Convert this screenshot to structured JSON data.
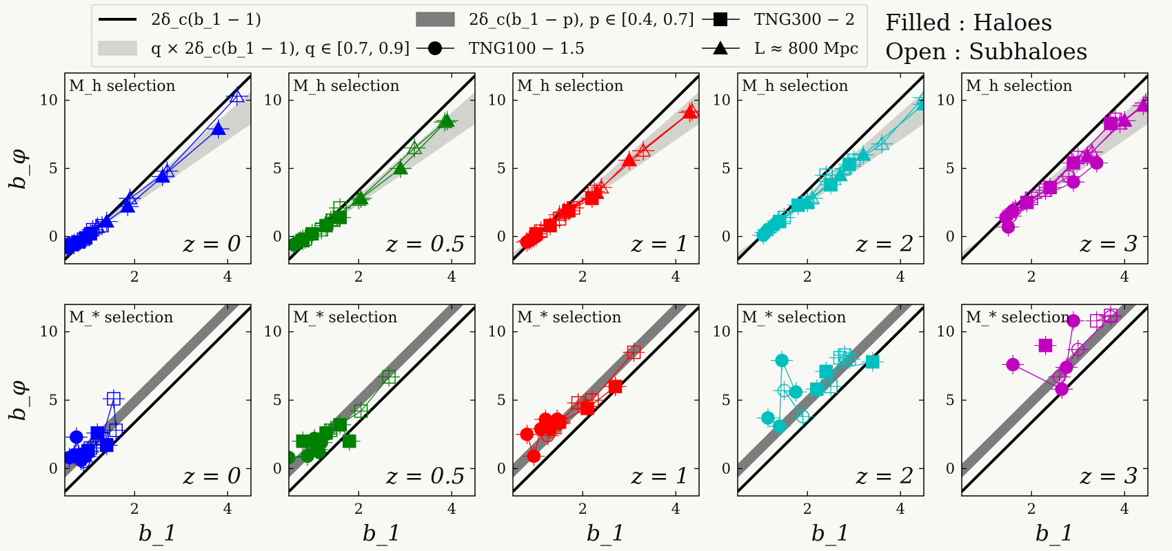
{
  "legend": {
    "items": [
      {
        "symbol": "line",
        "label": "2δ_c(b_1 − 1)"
      },
      {
        "symbol": "light-band",
        "label": "q × 2δ_c(b_1 − 1),  q ∈ [0.7, 0.9]"
      },
      {
        "symbol": "dark-band",
        "label": "2δ_c(b_1 − p),  p ∈ [0.4, 0.7]"
      },
      {
        "symbol": "circle",
        "label": "TNG100 − 1.5"
      },
      {
        "symbol": "square",
        "label": "TNG300 − 2"
      },
      {
        "symbol": "triangle",
        "label": "L ≈ 800 Mpc"
      }
    ],
    "side_note": {
      "line1": "Filled :  Haloes",
      "line2": "Open  :  Subhaloes"
    }
  },
  "chart_data": {
    "type": "scatter",
    "xlabel": "b_1",
    "ylabel": "b_φ",
    "xlim": [
      0.5,
      4.5
    ],
    "ylim": [
      -2,
      12
    ],
    "xticks": [
      2,
      4
    ],
    "yticks": [
      0,
      5,
      10
    ],
    "delta_c": 1.686,
    "bands": {
      "light_q": [
        0.7,
        0.9
      ],
      "dark_p": [
        0.4,
        0.7
      ]
    },
    "panels": [
      {
        "row": "Mh",
        "selection": "M_h selection",
        "z": "z = 0",
        "color": "#0000ff",
        "triangles_filled": [
          [
            1.4,
            1.1
          ],
          [
            1.85,
            2.2
          ],
          [
            2.6,
            4.4
          ],
          [
            3.8,
            7.9
          ]
        ],
        "triangles_open": [
          [
            1.2,
            0.7
          ],
          [
            1.9,
            2.8
          ],
          [
            2.7,
            4.8
          ],
          [
            4.2,
            10.3
          ]
        ],
        "squares_filled": [
          [
            0.65,
            -0.6
          ],
          [
            0.8,
            -0.4
          ],
          [
            0.95,
            -0.1
          ],
          [
            1.05,
            0.2
          ]
        ],
        "squares_open": [
          [
            0.7,
            -0.5
          ],
          [
            0.9,
            -0.2
          ],
          [
            1.1,
            0.5
          ],
          [
            1.3,
            0.8
          ]
        ],
        "circles_filled": [
          [
            0.55,
            -0.8
          ],
          [
            0.6,
            -0.7
          ],
          [
            0.7,
            -0.6
          ]
        ],
        "circles_open": [
          [
            0.58,
            -0.75
          ],
          [
            0.65,
            -0.65
          ]
        ]
      },
      {
        "row": "Mh",
        "selection": "M_h selection",
        "z": "z = 0.5",
        "color": "#008000",
        "triangles_filled": [
          [
            1.3,
            1.0
          ],
          [
            2.05,
            2.8
          ],
          [
            2.9,
            5.0
          ],
          [
            3.9,
            8.5
          ]
        ],
        "triangles_open": [
          [
            1.4,
            1.2
          ],
          [
            2.0,
            2.7
          ],
          [
            3.2,
            6.5
          ],
          [
            3.85,
            8.4
          ]
        ],
        "squares_filled": [
          [
            0.8,
            -0.3
          ],
          [
            1.0,
            0.2
          ],
          [
            1.3,
            0.8
          ],
          [
            1.6,
            1.4
          ]
        ],
        "squares_open": [
          [
            0.85,
            -0.2
          ],
          [
            1.2,
            0.5
          ],
          [
            1.45,
            1.2
          ],
          [
            1.6,
            2.1
          ]
        ],
        "circles_filled": [
          [
            0.6,
            -0.6
          ],
          [
            0.7,
            -0.4
          ],
          [
            0.8,
            -0.2
          ]
        ],
        "circles_open": [
          [
            0.65,
            -0.5
          ],
          [
            0.75,
            -0.3
          ]
        ]
      },
      {
        "row": "Mh",
        "selection": "M_h selection",
        "z": "z = 1",
        "color": "#ff0000",
        "triangles_filled": [
          [
            1.6,
            1.8
          ],
          [
            2.3,
            3.2
          ],
          [
            3.0,
            5.6
          ],
          [
            4.3,
            9.1
          ]
        ],
        "triangles_open": [
          [
            1.5,
            1.6
          ],
          [
            2.4,
            3.6
          ],
          [
            3.3,
            6.3
          ],
          [
            4.35,
            9.2
          ]
        ],
        "squares_filled": [
          [
            1.0,
            0.2
          ],
          [
            1.3,
            0.8
          ],
          [
            1.7,
            1.9
          ],
          [
            2.2,
            2.8
          ]
        ],
        "squares_open": [
          [
            1.1,
            0.4
          ],
          [
            1.5,
            1.3
          ],
          [
            1.8,
            2.1
          ],
          [
            2.25,
            3.3
          ]
        ],
        "circles_filled": [
          [
            0.8,
            -0.4
          ],
          [
            0.9,
            -0.2
          ],
          [
            1.0,
            0.0
          ]
        ],
        "circles_open": [
          [
            0.85,
            -0.3
          ],
          [
            0.95,
            -0.1
          ]
        ]
      },
      {
        "row": "Mh",
        "selection": "M_h selection",
        "z": "z = 2",
        "color": "#00bfbf",
        "triangles_filled": [
          [
            2.0,
            2.5
          ],
          [
            2.7,
            4.5
          ],
          [
            3.2,
            6.0
          ],
          [
            4.5,
            9.7
          ]
        ],
        "triangles_open": [
          [
            2.1,
            2.8
          ],
          [
            2.8,
            5.0
          ],
          [
            3.6,
            6.8
          ],
          [
            4.5,
            10.2
          ]
        ],
        "squares_filled": [
          [
            1.4,
            1.1
          ],
          [
            1.8,
            2.3
          ],
          [
            2.5,
            3.8
          ],
          [
            2.9,
            5.3
          ]
        ],
        "squares_open": [
          [
            1.5,
            1.4
          ],
          [
            2.0,
            2.5
          ],
          [
            2.4,
            4.5
          ],
          [
            3.0,
            5.6
          ]
        ],
        "circles_filled": [
          [
            1.05,
            0.1
          ],
          [
            1.15,
            0.5
          ],
          [
            1.3,
            0.9
          ]
        ],
        "circles_open": [
          [
            1.1,
            0.3
          ],
          [
            1.25,
            0.7
          ]
        ]
      },
      {
        "row": "Mh",
        "selection": "M_h selection",
        "z": "z = 3",
        "color": "#bf00bf",
        "triangles_filled": [
          [
            3.2,
            5.9
          ],
          [
            4.0,
            8.5
          ],
          [
            4.4,
            9.6
          ]
        ],
        "triangles_open": [
          [
            3.3,
            6.2
          ],
          [
            3.9,
            8.3
          ],
          [
            4.45,
            9.8
          ]
        ],
        "squares_filled": [
          [
            1.9,
            2.5
          ],
          [
            2.4,
            3.6
          ],
          [
            2.9,
            5.4
          ],
          [
            3.7,
            8.3
          ]
        ],
        "squares_open": [
          [
            2.0,
            2.8
          ],
          [
            2.3,
            3.4
          ],
          [
            3.0,
            5.8
          ],
          [
            3.8,
            8.6
          ]
        ],
        "circles_filled": [
          [
            1.45,
            1.4
          ],
          [
            1.5,
            0.7
          ],
          [
            1.6,
            1.9
          ],
          [
            2.9,
            4.0
          ],
          [
            3.4,
            5.4
          ]
        ],
        "circles_open": [
          [
            1.55,
            1.5
          ],
          [
            1.65,
            2.0
          ],
          [
            2.8,
            4.4
          ]
        ]
      },
      {
        "row": "Ms",
        "selection": "M_* selection",
        "z": "z = 0",
        "color": "#0000ff",
        "squares_filled": [
          [
            1.2,
            2.6
          ],
          [
            1.4,
            1.7
          ],
          [
            0.9,
            1.0
          ],
          [
            1.0,
            1.3
          ]
        ],
        "squares_open": [
          [
            1.55,
            5.1
          ],
          [
            1.6,
            2.8
          ],
          [
            1.05,
            1.5
          ],
          [
            1.3,
            2.2
          ]
        ],
        "circles_filled": [
          [
            0.6,
            0.8
          ],
          [
            0.75,
            2.3
          ],
          [
            0.85,
            0.6
          ],
          [
            0.95,
            0.9
          ],
          [
            0.7,
            1.0
          ]
        ],
        "circles_open": [
          [
            0.8,
            1.0
          ],
          [
            0.9,
            0.5
          ],
          [
            1.0,
            1.2
          ]
        ]
      },
      {
        "row": "Ms",
        "selection": "M_* selection",
        "z": "z = 0.5",
        "color": "#008000",
        "squares_filled": [
          [
            0.8,
            2.0
          ],
          [
            1.3,
            2.6
          ],
          [
            1.6,
            3.2
          ],
          [
            1.8,
            2.0
          ],
          [
            1.1,
            1.4
          ]
        ],
        "squares_open": [
          [
            1.4,
            2.8
          ],
          [
            2.05,
            4.2
          ],
          [
            2.65,
            6.7
          ]
        ],
        "circles_filled": [
          [
            0.5,
            0.8
          ],
          [
            0.9,
            0.9
          ],
          [
            1.05,
            2.2
          ],
          [
            1.2,
            1.9
          ],
          [
            1.15,
            1.2
          ]
        ],
        "circles_open": [
          [
            1.0,
            1.8
          ],
          [
            1.3,
            2.5
          ]
        ]
      },
      {
        "row": "Ms",
        "selection": "M_* selection",
        "z": "z = 1",
        "color": "#ff0000",
        "squares_filled": [
          [
            1.5,
            3.4
          ],
          [
            2.1,
            4.4
          ],
          [
            2.7,
            6.0
          ]
        ],
        "squares_open": [
          [
            1.4,
            3.0
          ],
          [
            1.9,
            4.8
          ],
          [
            2.2,
            5.0
          ],
          [
            3.1,
            8.5
          ]
        ],
        "circles_filled": [
          [
            0.8,
            2.5
          ],
          [
            1.2,
            3.6
          ],
          [
            1.3,
            2.9
          ],
          [
            1.45,
            3.6
          ],
          [
            0.95,
            0.9
          ],
          [
            1.1,
            2.9
          ]
        ],
        "circles_open": [
          [
            1.25,
            2.4
          ],
          [
            1.5,
            3.3
          ]
        ]
      },
      {
        "row": "Ms",
        "selection": "M_* selection",
        "z": "z = 2",
        "color": "#00bfbf",
        "squares_filled": [
          [
            2.2,
            5.8
          ],
          [
            2.4,
            7.1
          ],
          [
            3.4,
            7.8
          ]
        ],
        "squares_open": [
          [
            2.5,
            6.0
          ],
          [
            2.7,
            8.1
          ],
          [
            2.8,
            8.3
          ],
          [
            2.9,
            8.0
          ]
        ],
        "circles_filled": [
          [
            1.15,
            3.7
          ],
          [
            1.4,
            3.1
          ],
          [
            1.45,
            7.9
          ],
          [
            1.75,
            5.6
          ]
        ],
        "circles_open": [
          [
            1.5,
            5.7
          ],
          [
            1.9,
            3.8
          ]
        ]
      },
      {
        "row": "Ms",
        "selection": "M_* selection",
        "z": "z = 3",
        "color": "#bf00bf",
        "squares_filled": [
          [
            2.3,
            9.0
          ]
        ],
        "squares_open": [
          [
            3.4,
            10.8
          ],
          [
            3.7,
            11.2
          ]
        ],
        "circles_filled": [
          [
            1.6,
            7.6
          ],
          [
            2.65,
            5.8
          ],
          [
            2.75,
            7.4
          ],
          [
            2.9,
            10.8
          ]
        ],
        "circles_open": [
          [
            2.6,
            6.7
          ],
          [
            3.0,
            8.7
          ],
          [
            3.7,
            11.1
          ]
        ]
      }
    ]
  }
}
